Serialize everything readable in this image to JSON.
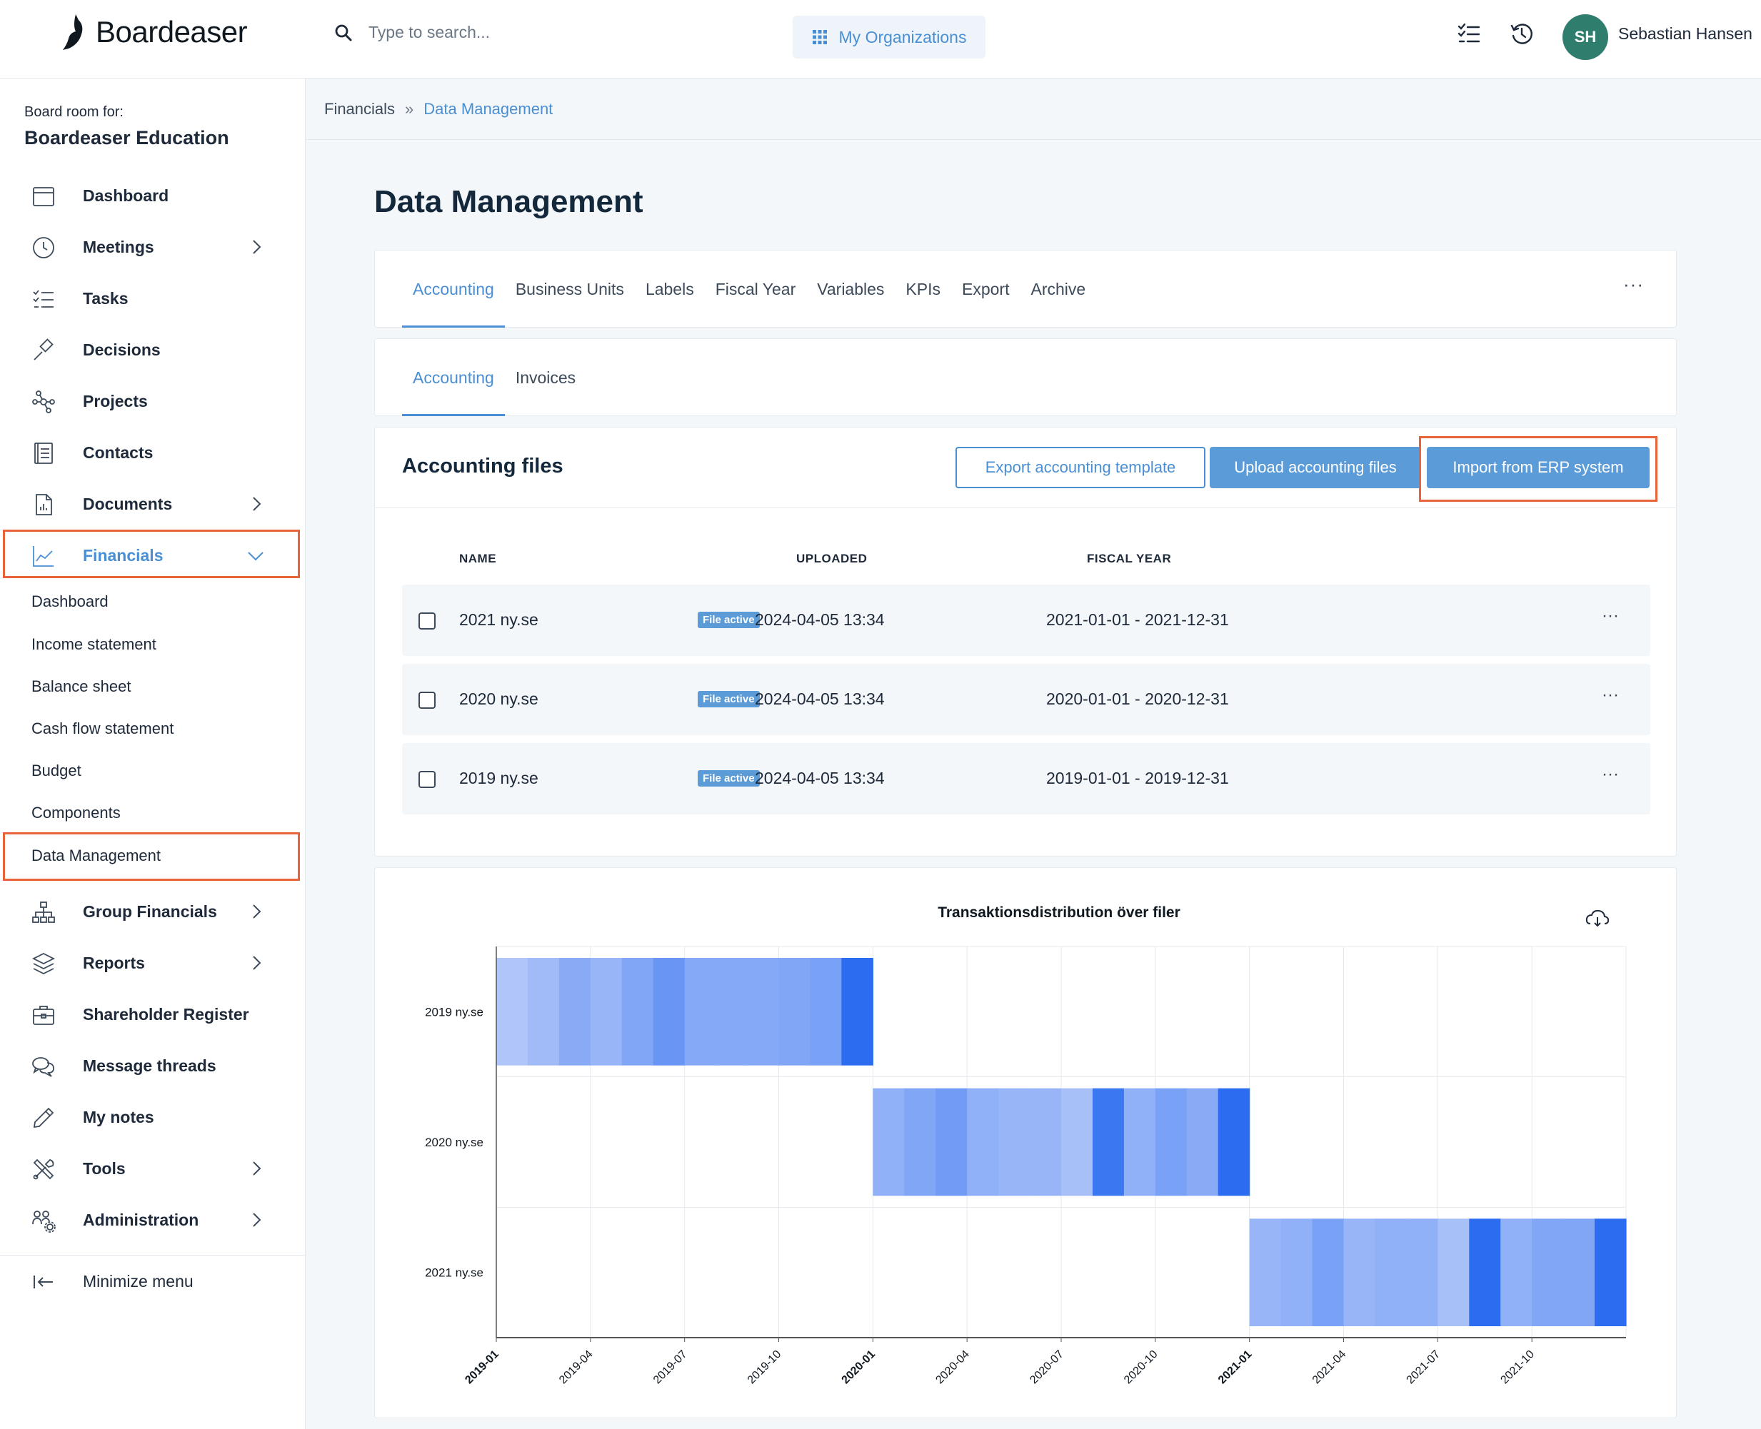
{
  "topbar": {
    "logo_text": "Boardeaser",
    "search_placeholder": "Type to search...",
    "organizations_label": "My Organizations",
    "avatar_initials": "SH",
    "user_name": "Sebastian Hansen"
  },
  "sidebar": {
    "boardroom_label": "Board room for:",
    "boardroom_name": "Boardeaser Education",
    "items": [
      {
        "label": "Dashboard",
        "icon": "calendar-icon"
      },
      {
        "label": "Meetings",
        "icon": "clock-icon"
      },
      {
        "label": "Tasks",
        "icon": "checklist-icon"
      },
      {
        "label": "Decisions",
        "icon": "gavel-icon"
      },
      {
        "label": "Projects",
        "icon": "network-icon"
      },
      {
        "label": "Contacts",
        "icon": "address-book-icon"
      },
      {
        "label": "Documents",
        "icon": "document-icon"
      },
      {
        "label": "Financials",
        "icon": "line-chart-icon"
      },
      {
        "label": "Group Financials",
        "icon": "hierarchy-icon"
      },
      {
        "label": "Reports",
        "icon": "layers-icon"
      },
      {
        "label": "Shareholder Register",
        "icon": "briefcase-icon"
      },
      {
        "label": "Message threads",
        "icon": "chat-icon"
      },
      {
        "label": "My notes",
        "icon": "pencil-icon"
      },
      {
        "label": "Tools",
        "icon": "tools-icon"
      },
      {
        "label": "Administration",
        "icon": "users-gear-icon"
      }
    ],
    "financials_sub": [
      "Dashboard",
      "Income statement",
      "Balance sheet",
      "Cash flow statement",
      "Budget",
      "Components",
      "Data Management"
    ],
    "minimize_label": "Minimize menu"
  },
  "breadcrumb": {
    "parent": "Financials",
    "separator": "»",
    "current": "Data Management"
  },
  "page_title": "Data Management",
  "main_tabs": [
    "Accounting",
    "Business Units",
    "Labels",
    "Fiscal Year",
    "Variables",
    "KPIs",
    "Export",
    "Archive"
  ],
  "sub_tabs": [
    "Accounting",
    "Invoices"
  ],
  "more": "···",
  "files": {
    "title": "Accounting files",
    "export_btn": "Export accounting template",
    "upload_btn": "Upload accounting files",
    "import_btn": "Import from ERP system",
    "columns": {
      "name": "NAME",
      "uploaded": "UPLOADED",
      "fiscal_year": "FISCAL YEAR"
    },
    "rows": [
      {
        "name": "2021 ny.se",
        "badge": "File active",
        "uploaded": "2024-04-05 13:34",
        "fiscal_year": "2021-01-01 - 2021-12-31"
      },
      {
        "name": "2020 ny.se",
        "badge": "File active",
        "uploaded": "2024-04-05 13:34",
        "fiscal_year": "2020-01-01 - 2020-12-31"
      },
      {
        "name": "2019 ny.se",
        "badge": "File active",
        "uploaded": "2024-04-05 13:34",
        "fiscal_year": "2019-01-01 - 2019-12-31"
      }
    ]
  },
  "colors": {
    "accent": "#4a8fd3",
    "highlight": "#e8623a",
    "avatar": "#2e7d6d"
  },
  "chart_data": {
    "type": "heatmap",
    "title": "Transaktionsdistribution över filer",
    "y_categories": [
      "2019 ny.se",
      "2020 ny.se",
      "2021 ny.se"
    ],
    "x_ticks": [
      "2019-01",
      "2019-04",
      "2019-07",
      "2019-10",
      "2020-01",
      "2020-04",
      "2020-07",
      "2020-10",
      "2021-01",
      "2021-04",
      "2021-07",
      "2021-10"
    ],
    "bold_ticks": [
      "2019-01",
      "2020-01",
      "2021-01"
    ],
    "xlim": [
      "2019-01",
      "2022-01"
    ],
    "grid": true,
    "legend": "none",
    "series": [
      {
        "start": "2019-01",
        "intensity": [
          0.15,
          0.25,
          0.4,
          0.3,
          0.45,
          0.6,
          0.42,
          0.42,
          0.42,
          0.45,
          0.5,
          1.0
        ]
      },
      {
        "start": "2020-01",
        "intensity": [
          0.35,
          0.45,
          0.55,
          0.35,
          0.3,
          0.3,
          0.2,
          0.9,
          0.35,
          0.5,
          0.4,
          1.0
        ]
      },
      {
        "start": "2021-01",
        "intensity": [
          0.3,
          0.35,
          0.5,
          0.3,
          0.35,
          0.35,
          0.2,
          1.0,
          0.35,
          0.45,
          0.45,
          1.0
        ]
      }
    ]
  }
}
